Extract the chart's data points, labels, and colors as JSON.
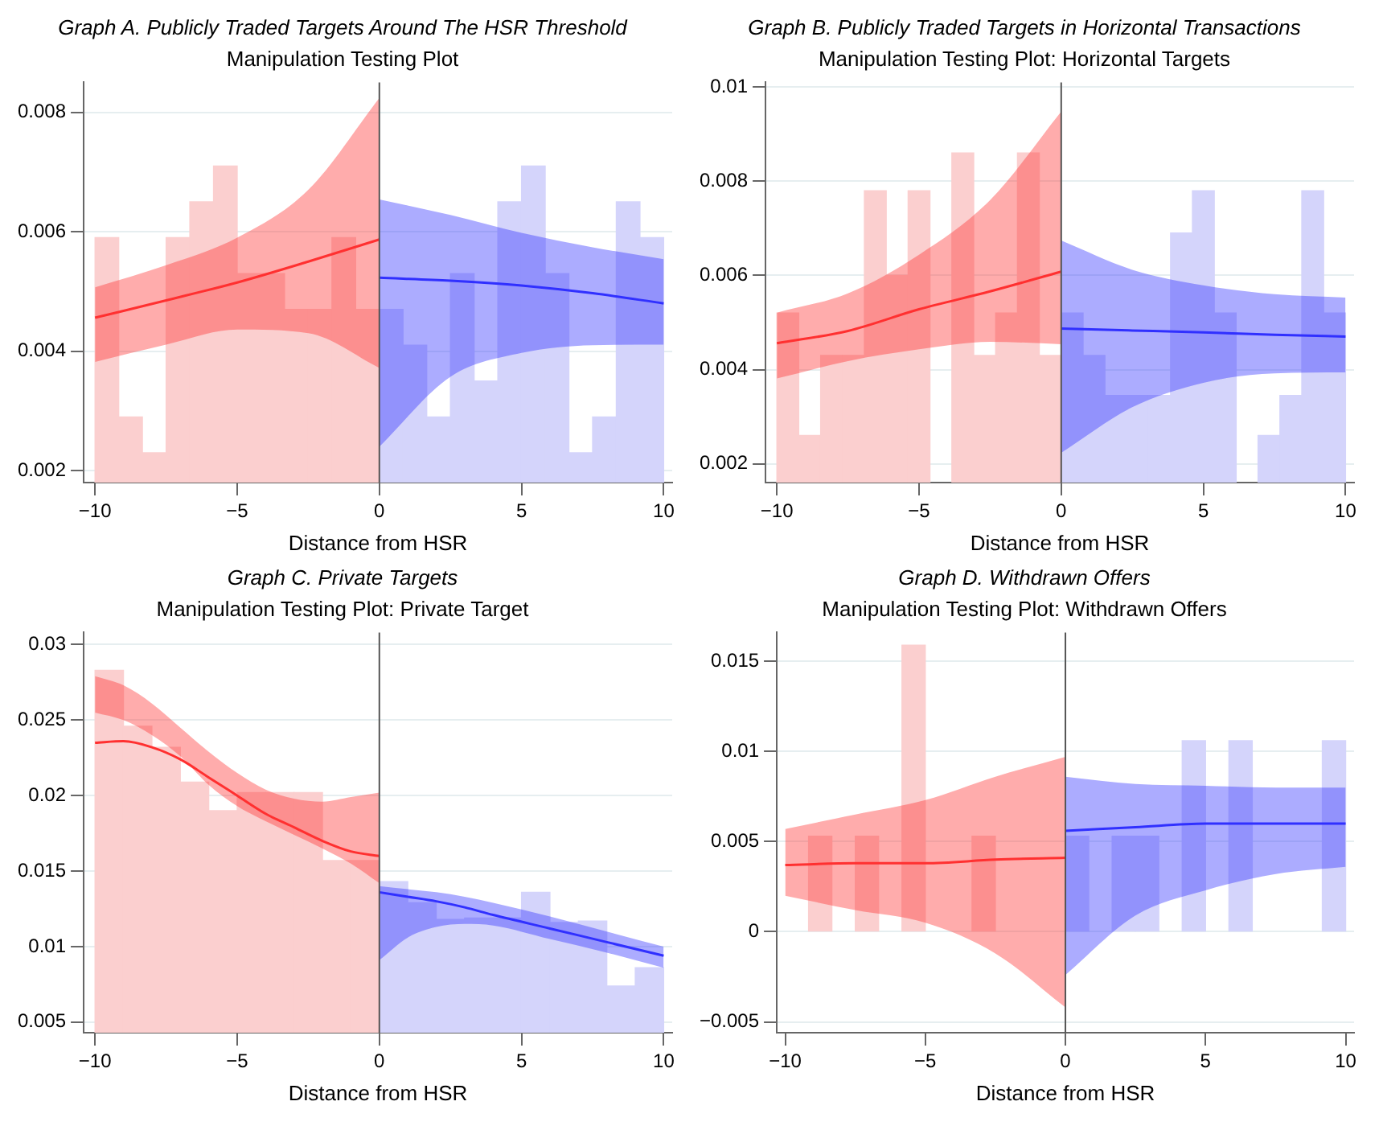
{
  "chart_data": [
    {
      "type": "histogram",
      "title": "Graph A. Publicly Traded Targets Around The HSR Threshold",
      "subtitle": "Manipulation Testing Plot",
      "xlabel": "Distance from HSR",
      "xlim": [
        -10.4,
        10.3
      ],
      "xticks": [
        -10,
        -5,
        0,
        5,
        10
      ],
      "ylim": [
        0.0018,
        0.0085
      ],
      "yticks": [
        0.002,
        0.004,
        0.006,
        0.008
      ],
      "grid": "y",
      "ref_lines": [
        {
          "axis": "x",
          "value": 0,
          "color": "#555555"
        }
      ],
      "series": [
        {
          "color": "#fbcfcf",
          "bins": [
            -10,
            -9.1667,
            -8.3333,
            -7.5,
            -6.6667,
            -5.8333,
            -5,
            -4.1667,
            -3.3333,
            -2.5,
            -1.6667,
            -0.8333,
            0
          ],
          "values": [
            0.0059,
            0.0029,
            0.0023,
            0.0059,
            0.0065,
            0.0071,
            0.0053,
            0.0053,
            0.0047,
            0.0047,
            0.0059,
            0.0047
          ]
        },
        {
          "color": "#d4d4fb",
          "bins": [
            0,
            0.8333,
            1.6667,
            2.5,
            3.3333,
            4.1667,
            5,
            5.8333,
            6.6667,
            7.5,
            8.3333,
            9.1667,
            10
          ],
          "values": [
            0.0047,
            0.0041,
            0.0029,
            0.0053,
            0.0035,
            0.0065,
            0.0071,
            0.0053,
            0.0023,
            0.0029,
            0.0065,
            0.0059
          ]
        },
        {
          "type": "line",
          "color": "#ff3030",
          "x": [
            -10,
            -7.5,
            -5,
            -2.5,
            0
          ],
          "values": [
            0.00456,
            0.00485,
            0.00515,
            0.0055,
            0.00587
          ],
          "lower": [
            0.00382,
            0.00411,
            0.00436,
            0.0043,
            0.00372
          ],
          "upper": [
            0.00507,
            0.00544,
            0.0059,
            0.0067,
            0.00824
          ]
        },
        {
          "type": "line",
          "color": "#3030ff",
          "x": [
            0,
            2.5,
            5,
            7.5,
            10
          ],
          "values": [
            0.00523,
            0.00518,
            0.0051,
            0.00497,
            0.0048
          ],
          "lower": [
            0.0024,
            0.00357,
            0.00397,
            0.0041,
            0.00411
          ],
          "upper": [
            0.00654,
            0.00628,
            0.00598,
            0.00574,
            0.00554
          ]
        }
      ]
    },
    {
      "type": "histogram",
      "title": "Graph B. Publicly Traded Targets in Horizontal Transactions",
      "subtitle": "Manipulation Testing Plot: Horizontal Targets",
      "xlabel": "Distance from HSR",
      "xlim": [
        -10.4,
        10.3
      ],
      "xticks": [
        -10,
        -5,
        0,
        5,
        10
      ],
      "ylim": [
        0.0016,
        0.0101
      ],
      "yticks": [
        0.002,
        0.004,
        0.006,
        0.008,
        0.01
      ],
      "grid": "y",
      "ref_lines": [
        {
          "axis": "x",
          "value": 0,
          "color": "#555555"
        }
      ],
      "series": [
        {
          "color": "#fbcfcf",
          "bins": [
            -10,
            -9.2308,
            -8.4615,
            -7.6923,
            -6.9231,
            -6.1538,
            -5.3846,
            -4.6154,
            -3.8462,
            -3.0769,
            -2.3077,
            -1.5385,
            -0.7692,
            0
          ],
          "values": [
            0.0052,
            0.0026,
            0.0043,
            0.0043,
            0.0078,
            0.006,
            0.0078,
            null,
            0.0086,
            0.0043,
            0.0052,
            0.0086,
            0.0043
          ]
        },
        {
          "color": "#d4d4fb",
          "bins": [
            0,
            0.7692,
            1.5385,
            2.3077,
            3.0769,
            3.8462,
            4.6154,
            5.3846,
            6.1538,
            6.9231,
            7.6923,
            8.4615,
            9.2308,
            10
          ],
          "values": [
            0.0052,
            0.0043,
            0.00345,
            0.00345,
            0.00345,
            0.0069,
            0.0078,
            0.0052,
            null,
            0.0026,
            0.00345,
            0.0078,
            0.0052
          ]
        },
        {
          "type": "line",
          "color": "#ff3030",
          "x": [
            -10,
            -7.5,
            -5,
            -2.5,
            0
          ],
          "values": [
            0.00456,
            0.00482,
            0.00528,
            0.00566,
            0.00608
          ],
          "lower": [
            0.00381,
            0.00418,
            0.00443,
            0.00459,
            0.00454
          ],
          "upper": [
            0.00521,
            0.00562,
            0.00644,
            0.0076,
            0.00948
          ]
        },
        {
          "type": "line",
          "color": "#3030ff",
          "x": [
            0,
            2.5,
            5,
            7.5,
            10
          ],
          "values": [
            0.00487,
            0.00483,
            0.00479,
            0.00474,
            0.0047
          ],
          "lower": [
            0.00223,
            0.0032,
            0.00372,
            0.00392,
            0.00394
          ],
          "upper": [
            0.00674,
            0.00612,
            0.00579,
            0.0056,
            0.00553
          ]
        }
      ]
    },
    {
      "type": "histogram",
      "title": "Graph C. Private Targets",
      "subtitle": "Manipulation Testing Plot: Private Target",
      "xlabel": "Distance from HSR",
      "xlim": [
        -10.4,
        10.3
      ],
      "xticks": [
        -10,
        -5,
        0,
        5,
        10
      ],
      "ylim": [
        0.0043,
        0.0308
      ],
      "yticks": [
        0.005,
        0.01,
        0.015,
        0.02,
        0.025,
        0.03
      ],
      "grid": "y",
      "ref_lines": [
        {
          "axis": "x",
          "value": 0,
          "color": "#555555"
        }
      ],
      "series": [
        {
          "color": "#fbcfcf",
          "bins": [
            -10,
            -9,
            -8,
            -7,
            -6,
            -5,
            -4,
            -3,
            -2,
            -1,
            0
          ],
          "values": [
            0.0283,
            0.0246,
            0.0232,
            0.0209,
            0.019,
            0.0202,
            0.0202,
            0.0202,
            0.0157,
            0.0157
          ]
        },
        {
          "color": "#d4d4fb",
          "bins": [
            0,
            1,
            2,
            3,
            4,
            5,
            6,
            7,
            8,
            9,
            10
          ],
          "values": [
            0.0143,
            0.0129,
            0.0118,
            0.0119,
            0.0119,
            0.0136,
            0.0116,
            0.0117,
            0.0074,
            0.0086
          ]
        },
        {
          "type": "line",
          "color": "#ff3030",
          "x": [
            -10,
            -9,
            -8,
            -7,
            -6,
            -5,
            -4,
            -3,
            -2,
            -1,
            0
          ],
          "values": [
            0.0235,
            0.0236,
            0.0232,
            0.0224,
            0.0212,
            0.02,
            0.0188,
            0.0179,
            0.017,
            0.0163,
            0.016
          ],
          "lower": [
            0.0255,
            0.025,
            0.024,
            0.0226,
            0.0207,
            0.0193,
            0.0183,
            0.0174,
            0.0165,
            0.0155,
            0.0142
          ],
          "upper": [
            0.0279,
            0.0273,
            0.0261,
            0.0245,
            0.0229,
            0.0215,
            0.0204,
            0.0198,
            0.0196,
            0.0199,
            0.0202
          ]
        },
        {
          "type": "line",
          "color": "#3030ff",
          "x": [
            0,
            1,
            2,
            3,
            4,
            6,
            8,
            10
          ],
          "values": [
            0.0136,
            0.0133,
            0.013,
            0.0126,
            0.0121,
            0.0112,
            0.0103,
            0.0094
          ],
          "lower": [
            0.0091,
            0.0106,
            0.0113,
            0.0115,
            0.0114,
            0.0105,
            0.0096,
            0.0086
          ],
          "upper": [
            0.014,
            0.0138,
            0.0136,
            0.0133,
            0.0129,
            0.012,
            0.011,
            0.01
          ]
        }
      ]
    },
    {
      "type": "histogram",
      "title": "Graph D. Withdrawn Offers",
      "subtitle": "Manipulation Testing Plot: Withdrawn Offers",
      "xlabel": "Distance from HSR",
      "xlim": [
        -10.3,
        10.3
      ],
      "xticks": [
        -10,
        -5,
        0,
        5,
        10
      ],
      "ylim": [
        -0.0056,
        0.0166
      ],
      "yticks": [
        -0.005,
        0,
        0.005,
        0.01,
        0.015
      ],
      "grid": "y",
      "ref_lines": [
        {
          "axis": "x",
          "value": 0,
          "color": "#555555"
        }
      ],
      "series": [
        {
          "color": "#fbcfcf",
          "bins": [
            -10,
            -9.1667,
            -8.3333,
            -7.5,
            -6.6667,
            -5.8333,
            -5,
            -4.1667,
            -3.3333,
            -2.5,
            -1.6667,
            -0.8333,
            0
          ],
          "values": [
            null,
            0.0053,
            null,
            0.0053,
            null,
            0.0159,
            null,
            null,
            0.0053,
            null,
            null,
            null
          ]
        },
        {
          "color": "#d4d4fb",
          "bins": [
            0,
            0.8333,
            1.6667,
            2.5,
            3.3333,
            4.1667,
            5,
            5.8333,
            6.6667,
            7.5,
            8.3333,
            9.1667,
            10
          ],
          "values": [
            0.0053,
            null,
            0.0053,
            0.0053,
            null,
            0.0106,
            null,
            0.0106,
            null,
            null,
            null,
            0.0106
          ]
        },
        {
          "type": "line",
          "color": "#ff3030",
          "x": [
            -10,
            -7.5,
            -5,
            -2.5,
            0
          ],
          "values": [
            0.0037,
            0.0038,
            0.0038,
            0.004,
            0.0041
          ],
          "lower": [
            0.002,
            0.0012,
            0.0005,
            -0.0012,
            -0.0042
          ],
          "upper": [
            0.0057,
            0.0065,
            0.0073,
            0.0086,
            0.0097
          ]
        },
        {
          "type": "line",
          "color": "#3030ff",
          "x": [
            0,
            2.5,
            5,
            7.5,
            10
          ],
          "values": [
            0.0056,
            0.0058,
            0.006,
            0.006,
            0.006
          ],
          "lower": [
            -0.0024,
            0.0009,
            0.0023,
            0.0032,
            0.0036
          ],
          "upper": [
            0.0086,
            0.0082,
            0.0081,
            0.008,
            0.008
          ]
        }
      ]
    }
  ]
}
